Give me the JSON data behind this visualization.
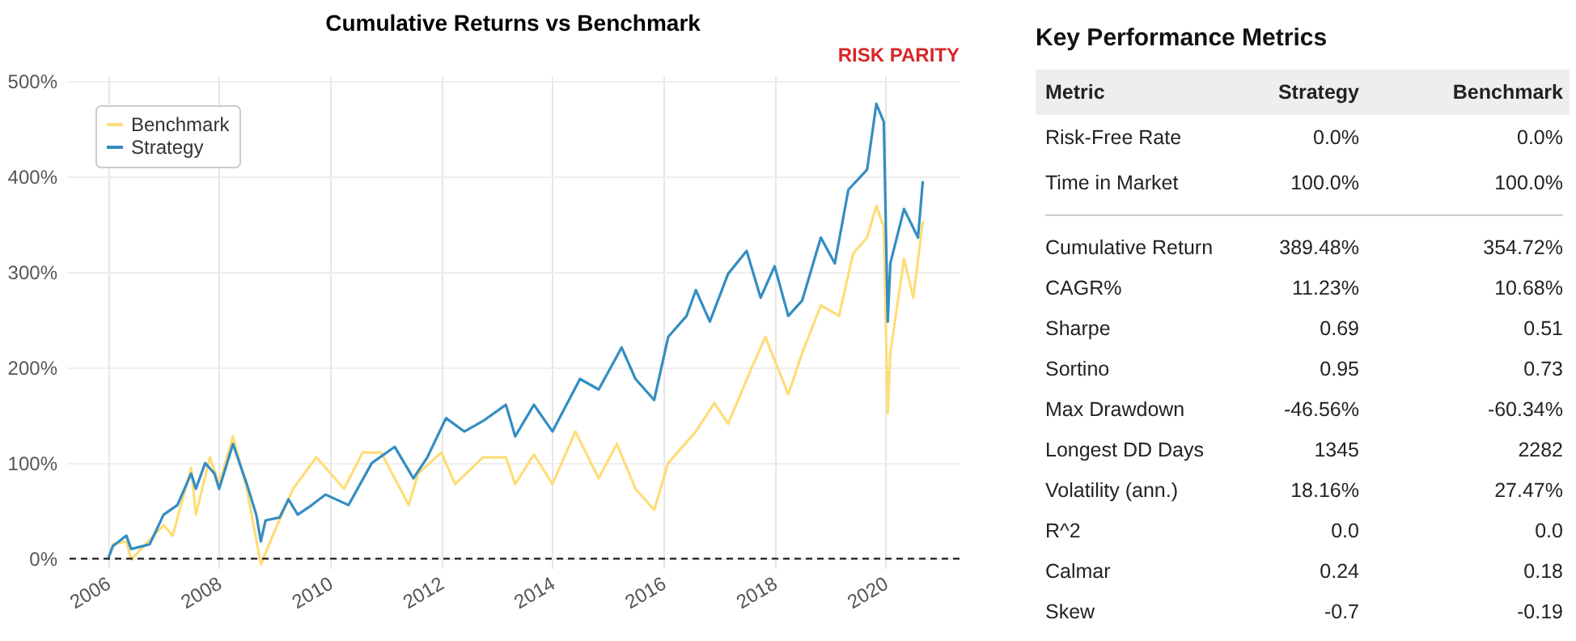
{
  "chart_data": [
    {
      "type": "line",
      "title": "Cumulative Returns vs Benchmark",
      "annotations": [
        "RISK PARITY"
      ],
      "legend": "top left",
      "grid": true,
      "line_style": "solid",
      "xlim": [
        "2005-04",
        "2021-05"
      ],
      "xticks": [
        "2006",
        "2008",
        "2010",
        "2012",
        "2014",
        "2016",
        "2018",
        "2020"
      ],
      "ylim": [
        -10,
        505
      ],
      "yticks": [
        {
          "value": 0,
          "label": "0%"
        },
        {
          "value": 100,
          "label": "100%"
        },
        {
          "value": 200,
          "label": "200%"
        },
        {
          "value": 300,
          "label": "300%"
        },
        {
          "value": 400,
          "label": "400%"
        },
        {
          "value": 500,
          "label": "500%"
        }
      ],
      "ref_lines": [
        {
          "axis": "y",
          "value": 0,
          "color": "#333333",
          "line_style": "dashed"
        }
      ],
      "series": [
        {
          "name": "Benchmark",
          "color": "#fedd78",
          "x": [
            "2006-01",
            "2006-02",
            "2006-05",
            "2006-06",
            "2007-01",
            "2007-03",
            "2007-07",
            "2007-08",
            "2007-11",
            "2008-01",
            "2008-04",
            "2008-07",
            "2008-10",
            "2009-01",
            "2009-05",
            "2009-10",
            "2009-12",
            "2010-04",
            "2010-08",
            "2010-12",
            "2011-06",
            "2011-08",
            "2012-01",
            "2012-04",
            "2012-10",
            "2013-03",
            "2013-05",
            "2013-09",
            "2014-01",
            "2014-06",
            "2014-11",
            "2015-03",
            "2015-07",
            "2015-11",
            "2016-02",
            "2016-08",
            "2016-12",
            "2017-03",
            "2017-08",
            "2017-11",
            "2018-04",
            "2018-07",
            "2018-11",
            "2019-03",
            "2019-06",
            "2019-09",
            "2019-11",
            "2019-12-20",
            "2020-01-15",
            "2020-02",
            "2020-05",
            "2020-07",
            "2020-09"
          ],
          "values": [
            0,
            15,
            18,
            -1,
            35,
            24,
            95,
            46,
            106,
            78,
            128,
            73,
            -6,
            29,
            73,
            106,
            95,
            73,
            111,
            111,
            56,
            89,
            111,
            78,
            106,
            106,
            78,
            109,
            78,
            133,
            84,
            120,
            73,
            51,
            100,
            133,
            163,
            141,
            199,
            232,
            172,
            215,
            265,
            254,
            319,
            336,
            369,
            347,
            152,
            215,
            314,
            273,
            352
          ]
        },
        {
          "name": "Strategy",
          "color": "#348dc1",
          "x": [
            "2006-01",
            "2006-02",
            "2006-05",
            "2006-06",
            "2006-10",
            "2007-01",
            "2007-04",
            "2007-07",
            "2007-08",
            "2007-10",
            "2007-12",
            "2008-01",
            "2008-04",
            "2008-07",
            "2008-09",
            "2008-10",
            "2008-11",
            "2009-02",
            "2009-04",
            "2009-06",
            "2009-09",
            "2009-12",
            "2010-05",
            "2010-10",
            "2011-03",
            "2011-07",
            "2011-10",
            "2012-02",
            "2012-06",
            "2012-10",
            "2013-03",
            "2013-05",
            "2013-09",
            "2014-01",
            "2014-07",
            "2014-11",
            "2015-04",
            "2015-07",
            "2015-11",
            "2016-02",
            "2016-06",
            "2016-08",
            "2016-11",
            "2017-03",
            "2017-07",
            "2017-10",
            "2018-01",
            "2018-04",
            "2018-07",
            "2018-11",
            "2019-02",
            "2019-05",
            "2019-09",
            "2019-11",
            "2019-12-20",
            "2020-01-15",
            "2020-02",
            "2020-05",
            "2020-08",
            "2020-09"
          ],
          "values": [
            0,
            13,
            24,
            10,
            15,
            46,
            56,
            89,
            73,
            100,
            89,
            73,
            120,
            78,
            46,
            18,
            40,
            43,
            62,
            46,
            56,
            67,
            56,
            100,
            117,
            84,
            106,
            147,
            133,
            144,
            161,
            128,
            161,
            133,
            188,
            177,
            221,
            188,
            166,
            232,
            254,
            281,
            248,
            298,
            322,
            273,
            306,
            254,
            270,
            336,
            309,
            386,
            407,
            476,
            457,
            248,
            309,
            366,
            336,
            394
          ]
        }
      ]
    },
    {
      "type": "other",
      "title": "Key Performance Metrics",
      "annotations": [
        "Metric",
        "Strategy",
        "Benchmark",
        "Risk-Free Rate",
        "0.0%",
        "0.0%",
        "Time in Market",
        "100.0%",
        "100.0%",
        "Cumulative Return",
        "389.48%",
        "354.72%",
        "CAGR%",
        "11.23%",
        "10.68%",
        "Sharpe",
        "0.69",
        "0.51",
        "Sortino",
        "0.95",
        "0.73",
        "Max Drawdown",
        "-46.56%",
        "-60.34%",
        "Longest DD Days",
        "1345",
        "2282",
        "Volatility (ann.)",
        "18.16%",
        "27.47%",
        "R^2",
        "0.0",
        "0.0",
        "Calmar",
        "0.24",
        "0.18",
        "Skew",
        "-0.7",
        "-0.19"
      ]
    }
  ]
}
